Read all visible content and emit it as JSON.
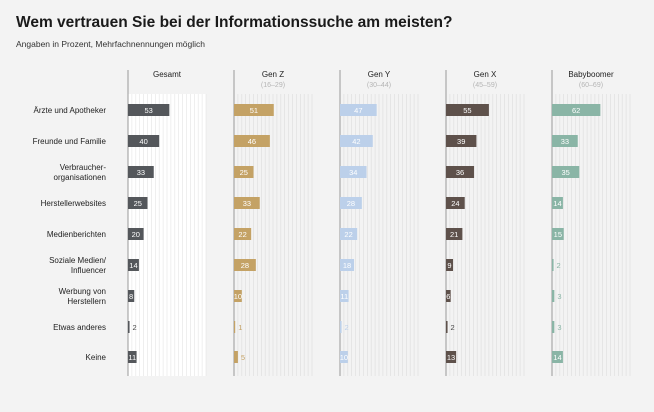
{
  "header": {
    "title": "Wem vertrauen Sie bei der Informationssuche am meisten?",
    "subtitle": "Angaben in Prozent, Mehrfachnennungen möglich"
  },
  "chart_data": {
    "type": "bar",
    "orientation": "horizontal",
    "unit": "%",
    "xlim": [
      0,
      100
    ],
    "grid": true,
    "categories": [
      [
        "Ärzte und Apotheker"
      ],
      [
        "Freunde und Familie"
      ],
      [
        "Verbraucher-",
        "organisationen"
      ],
      [
        "Herstellerwebsites"
      ],
      [
        "Medienberichten"
      ],
      [
        "Soziale Medien/",
        "Influencer"
      ],
      [
        "Werbung von",
        "Herstellern"
      ],
      [
        "Etwas anderes"
      ],
      [
        "Keine"
      ]
    ],
    "series": [
      {
        "name": "Gesamt",
        "sub": "",
        "color": "#54575b",
        "values": [
          53,
          40,
          33,
          25,
          20,
          14,
          8,
          2,
          11
        ]
      },
      {
        "name": "Gen Z",
        "sub": "(16–29)",
        "color": "#c4a265",
        "values": [
          51,
          46,
          25,
          33,
          22,
          28,
          10,
          1,
          5
        ]
      },
      {
        "name": "Gen Y",
        "sub": "(30–44)",
        "color": "#bcd0ea",
        "values": [
          47,
          42,
          34,
          28,
          22,
          18,
          11,
          2,
          10
        ]
      },
      {
        "name": "Gen X",
        "sub": "(45–59)",
        "color": "#5e514b",
        "values": [
          55,
          39,
          36,
          24,
          21,
          9,
          6,
          2,
          13
        ]
      },
      {
        "name": "Babyboomer",
        "sub": "(60–69)",
        "color": "#8ab5a6",
        "values": [
          62,
          33,
          35,
          14,
          15,
          2,
          3,
          3,
          14
        ]
      }
    ]
  }
}
